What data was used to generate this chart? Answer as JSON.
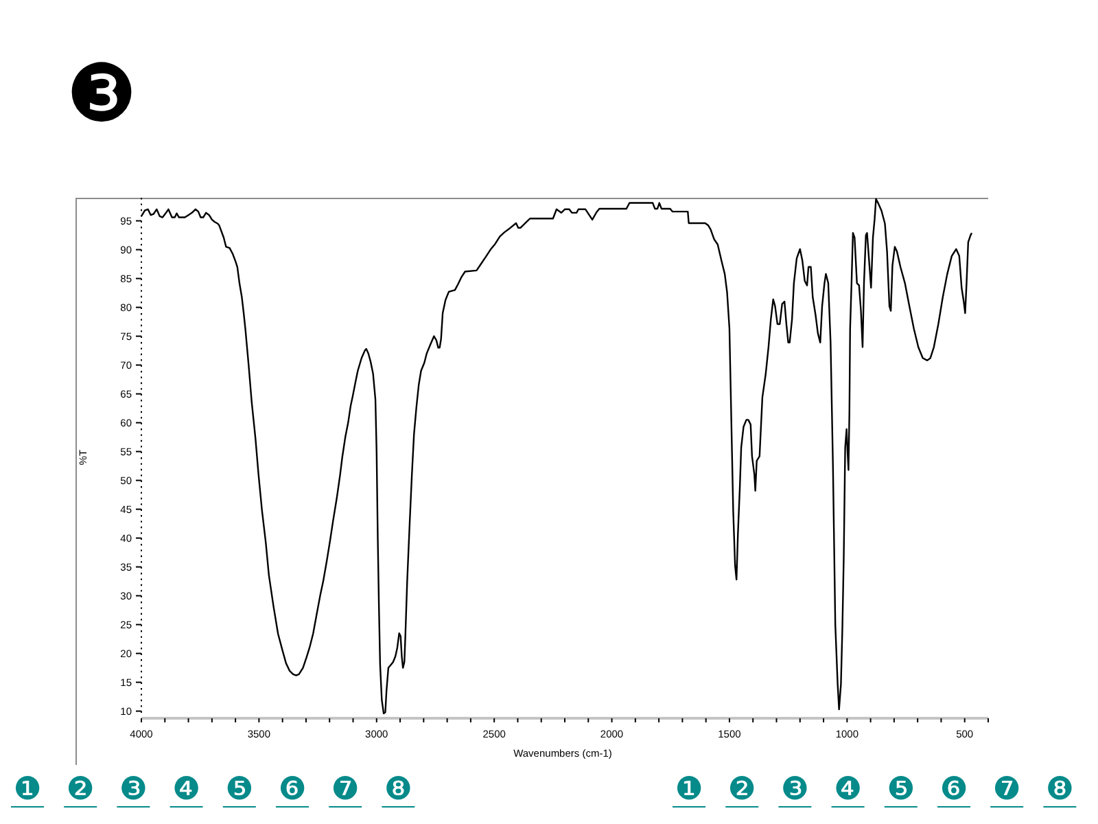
{
  "chart_data": {
    "type": "line",
    "title": "❸",
    "xlabel": "Wavenumbers (cm-1)",
    "ylabel": "%T",
    "annotations": [
      "❶",
      "❷",
      "❸",
      "❹",
      "❺",
      "❻",
      "❼",
      "❽",
      "❶",
      "❷",
      "❸",
      "❹",
      "❺",
      "❻",
      "❼",
      "❽"
    ],
    "xlim": [
      4000,
      400
    ],
    "ylim": [
      9,
      99
    ],
    "xticks": [
      4000,
      {
        "value": 3900,
        "label": null
      },
      {
        "value": 3800,
        "label": null
      },
      {
        "value": 3700,
        "label": null
      },
      {
        "value": 3600,
        "label": null
      },
      3500,
      {
        "value": 3400,
        "label": null
      },
      {
        "value": 3300,
        "label": null
      },
      {
        "value": 3200,
        "label": null
      },
      {
        "value": 3100,
        "label": null
      },
      3000,
      {
        "value": 2900,
        "label": null
      },
      {
        "value": 2800,
        "label": null
      },
      {
        "value": 2700,
        "label": null
      },
      {
        "value": 2600,
        "label": null
      },
      2500,
      {
        "value": 2400,
        "label": null
      },
      {
        "value": 2300,
        "label": null
      },
      {
        "value": 2200,
        "label": null
      },
      {
        "value": 2100,
        "label": null
      },
      2000,
      {
        "value": 1900,
        "label": null
      },
      {
        "value": 1800,
        "label": null
      },
      {
        "value": 1700,
        "label": null
      },
      {
        "value": 1600,
        "label": null
      },
      1500,
      {
        "value": 1400,
        "label": null
      },
      {
        "value": 1300,
        "label": null
      },
      {
        "value": 1200,
        "label": null
      },
      {
        "value": 1100,
        "label": null
      },
      1000,
      {
        "value": 900,
        "label": null
      },
      {
        "value": 800,
        "label": null
      },
      {
        "value": 700,
        "label": null
      },
      {
        "value": 600,
        "label": null
      },
      500,
      {
        "value": 400,
        "label": null
      }
    ],
    "yticks": [
      10,
      15,
      20,
      25,
      30,
      35,
      40,
      45,
      50,
      55,
      60,
      65,
      70,
      75,
      80,
      85,
      90,
      95
    ],
    "line_style": "solid",
    "x": [
      4000,
      3985,
      3972,
      3960,
      3948,
      3935,
      3922,
      3910,
      3895,
      3885,
      3870,
      3858,
      3850,
      3840,
      3815,
      3800,
      3785,
      3770,
      3758,
      3748,
      3737,
      3725,
      3712,
      3700,
      3688,
      3675,
      3669,
      3650,
      3640,
      3625,
      3612,
      3600,
      3592,
      3583,
      3573,
      3565,
      3558,
      3544,
      3531,
      3515,
      3502,
      3487,
      3471,
      3458,
      3438,
      3419,
      3400,
      3385,
      3370,
      3355,
      3342,
      3330,
      3313,
      3298,
      3285,
      3270,
      3256,
      3240,
      3227,
      3212,
      3198,
      3185,
      3169,
      3155,
      3146,
      3133,
      3121,
      3110,
      3102,
      3090,
      3080,
      3064,
      3050,
      3044,
      3035,
      3025,
      3015,
      3005,
      3000,
      2995,
      2990,
      2985,
      2978,
      2970,
      2963,
      2958,
      2950,
      2940,
      2930,
      2920,
      2912,
      2904,
      2898,
      2893,
      2888,
      2882,
      2878,
      2870,
      2860,
      2850,
      2841,
      2831,
      2821,
      2811,
      2797,
      2787,
      2772,
      2756,
      2746,
      2738,
      2732,
      2726,
      2719,
      2707,
      2693,
      2667,
      2654,
      2640,
      2624,
      2575,
      2555,
      2535,
      2516,
      2496,
      2476,
      2457,
      2431,
      2407,
      2398,
      2388,
      2368,
      2348,
      2250,
      2235,
      2215,
      2200,
      2181,
      2170,
      2150,
      2142,
      2112,
      2083,
      2065,
      2053,
      1938,
      1925,
      1826,
      1817,
      1806,
      1798,
      1789,
      1752,
      1742,
      1677,
      1673,
      1603,
      1590,
      1580,
      1565,
      1550,
      1534,
      1520,
      1510,
      1500,
      1490,
      1484,
      1476,
      1470,
      1464,
      1456,
      1450,
      1440,
      1428,
      1420,
      1410,
      1404,
      1394,
      1390,
      1384,
      1372,
      1360,
      1346,
      1334,
      1324,
      1314,
      1306,
      1296,
      1286,
      1276,
      1266,
      1258,
      1250,
      1244,
      1234,
      1226,
      1214,
      1200,
      1190,
      1180,
      1170,
      1164,
      1154,
      1146,
      1134,
      1124,
      1114,
      1106,
      1096,
      1090,
      1080,
      1070,
      1060,
      1050,
      1040,
      1034,
      1026,
      1020,
      1014,
      1008,
      1002,
      998,
      994,
      990,
      987,
      981,
      975,
      968,
      958,
      949,
      941,
      934,
      928,
      920,
      915,
      905,
      898,
      890,
      883,
      877,
      867,
      854,
      839,
      830,
      820,
      814,
      807,
      797,
      788,
      773,
      754,
      735,
      716,
      697,
      678,
      659,
      646,
      631,
      612,
      593,
      574,
      555,
      536,
      523,
      513,
      504,
      498,
      492,
      485,
      475,
      470
    ],
    "series": [
      {
        "color": "#000000",
        "values": [
          95.8,
          96.8,
          97.0,
          96.0,
          96.2,
          97.0,
          95.8,
          95.6,
          96.4,
          97.0,
          95.6,
          95.6,
          96.3,
          95.6,
          95.6,
          96.0,
          96.4,
          97.0,
          96.6,
          95.6,
          95.6,
          96.4,
          96.0,
          95.2,
          94.8,
          94.5,
          94.2,
          92.1,
          90.5,
          90.3,
          89.3,
          88.0,
          87.0,
          84.2,
          81.8,
          79,
          76.3,
          70,
          63.6,
          57.3,
          51,
          44.7,
          39.2,
          33.6,
          28.1,
          23.4,
          20.5,
          18.3,
          17,
          16.4,
          16.2,
          16.4,
          17.5,
          19.3,
          21,
          23.4,
          26.5,
          30,
          32.5,
          36,
          39.5,
          43,
          47,
          51,
          54,
          57.5,
          60,
          63,
          64.5,
          67,
          69,
          71.2,
          72.5,
          72.8,
          72,
          70.5,
          68.5,
          64,
          55,
          40,
          28,
          18,
          12,
          9.6,
          9.8,
          13.5,
          17.5,
          18,
          18.5,
          19.5,
          21,
          23.5,
          23,
          19.5,
          17.5,
          18.5,
          22.7,
          32.5,
          42,
          51,
          58,
          62.6,
          66.5,
          69,
          70.4,
          72,
          73.5,
          75,
          74.3,
          73,
          73,
          74.5,
          79,
          81.3,
          82.7,
          83,
          84,
          85.2,
          86.2,
          86.4,
          87.6,
          88.8,
          90,
          91,
          92.3,
          93,
          93.8,
          94.6,
          93.8,
          93.8,
          94.6,
          95.4,
          95.4,
          97,
          96.4,
          97,
          97,
          96.4,
          96.4,
          97,
          97,
          95.2,
          96.5,
          97.1,
          97.1,
          98.1,
          98.1,
          97.1,
          97.1,
          98.1,
          97.1,
          97.1,
          96.6,
          96.6,
          94.6,
          94.6,
          94.2,
          93.5,
          91.8,
          90.9,
          88.1,
          85.8,
          82.6,
          76.3,
          56.5,
          44.7,
          35.2,
          32.8,
          40.7,
          48.6,
          55.7,
          59.3,
          60.5,
          60.5,
          59.7,
          54.2,
          51,
          48.2,
          53.4,
          54.2,
          64.4,
          68.4,
          73.1,
          77.9,
          81.4,
          80.2,
          77.1,
          77.1,
          80.6,
          81,
          77.1,
          73.9,
          73.9,
          77.9,
          84.2,
          88.5,
          90.1,
          88.1,
          84.6,
          83.8,
          87,
          87,
          81.8,
          78.7,
          75.5,
          73.9,
          80.2,
          84.2,
          85.8,
          84.2,
          73.9,
          52.6,
          25,
          14.7,
          10.3,
          14.7,
          24.2,
          36.8,
          55.7,
          58.9,
          55,
          51.8,
          62,
          76.3,
          84.2,
          92.9,
          92.1,
          84.2,
          83.8,
          79.4,
          73.1,
          84.2,
          92.5,
          92.9,
          87.3,
          83.4,
          92.1,
          95.2,
          98.8,
          98,
          96.8,
          94.5,
          89.7,
          80.2,
          79.4,
          87.3,
          90.5,
          89.7,
          87,
          84.2,
          80.2,
          76.3,
          73.1,
          71.2,
          70.8,
          71.2,
          73.1,
          77.1,
          81.8,
          85.8,
          88.9,
          90.1,
          88.9,
          83.4,
          81,
          79,
          84.2,
          91.3,
          92.5,
          92.9
        ]
      }
    ]
  }
}
